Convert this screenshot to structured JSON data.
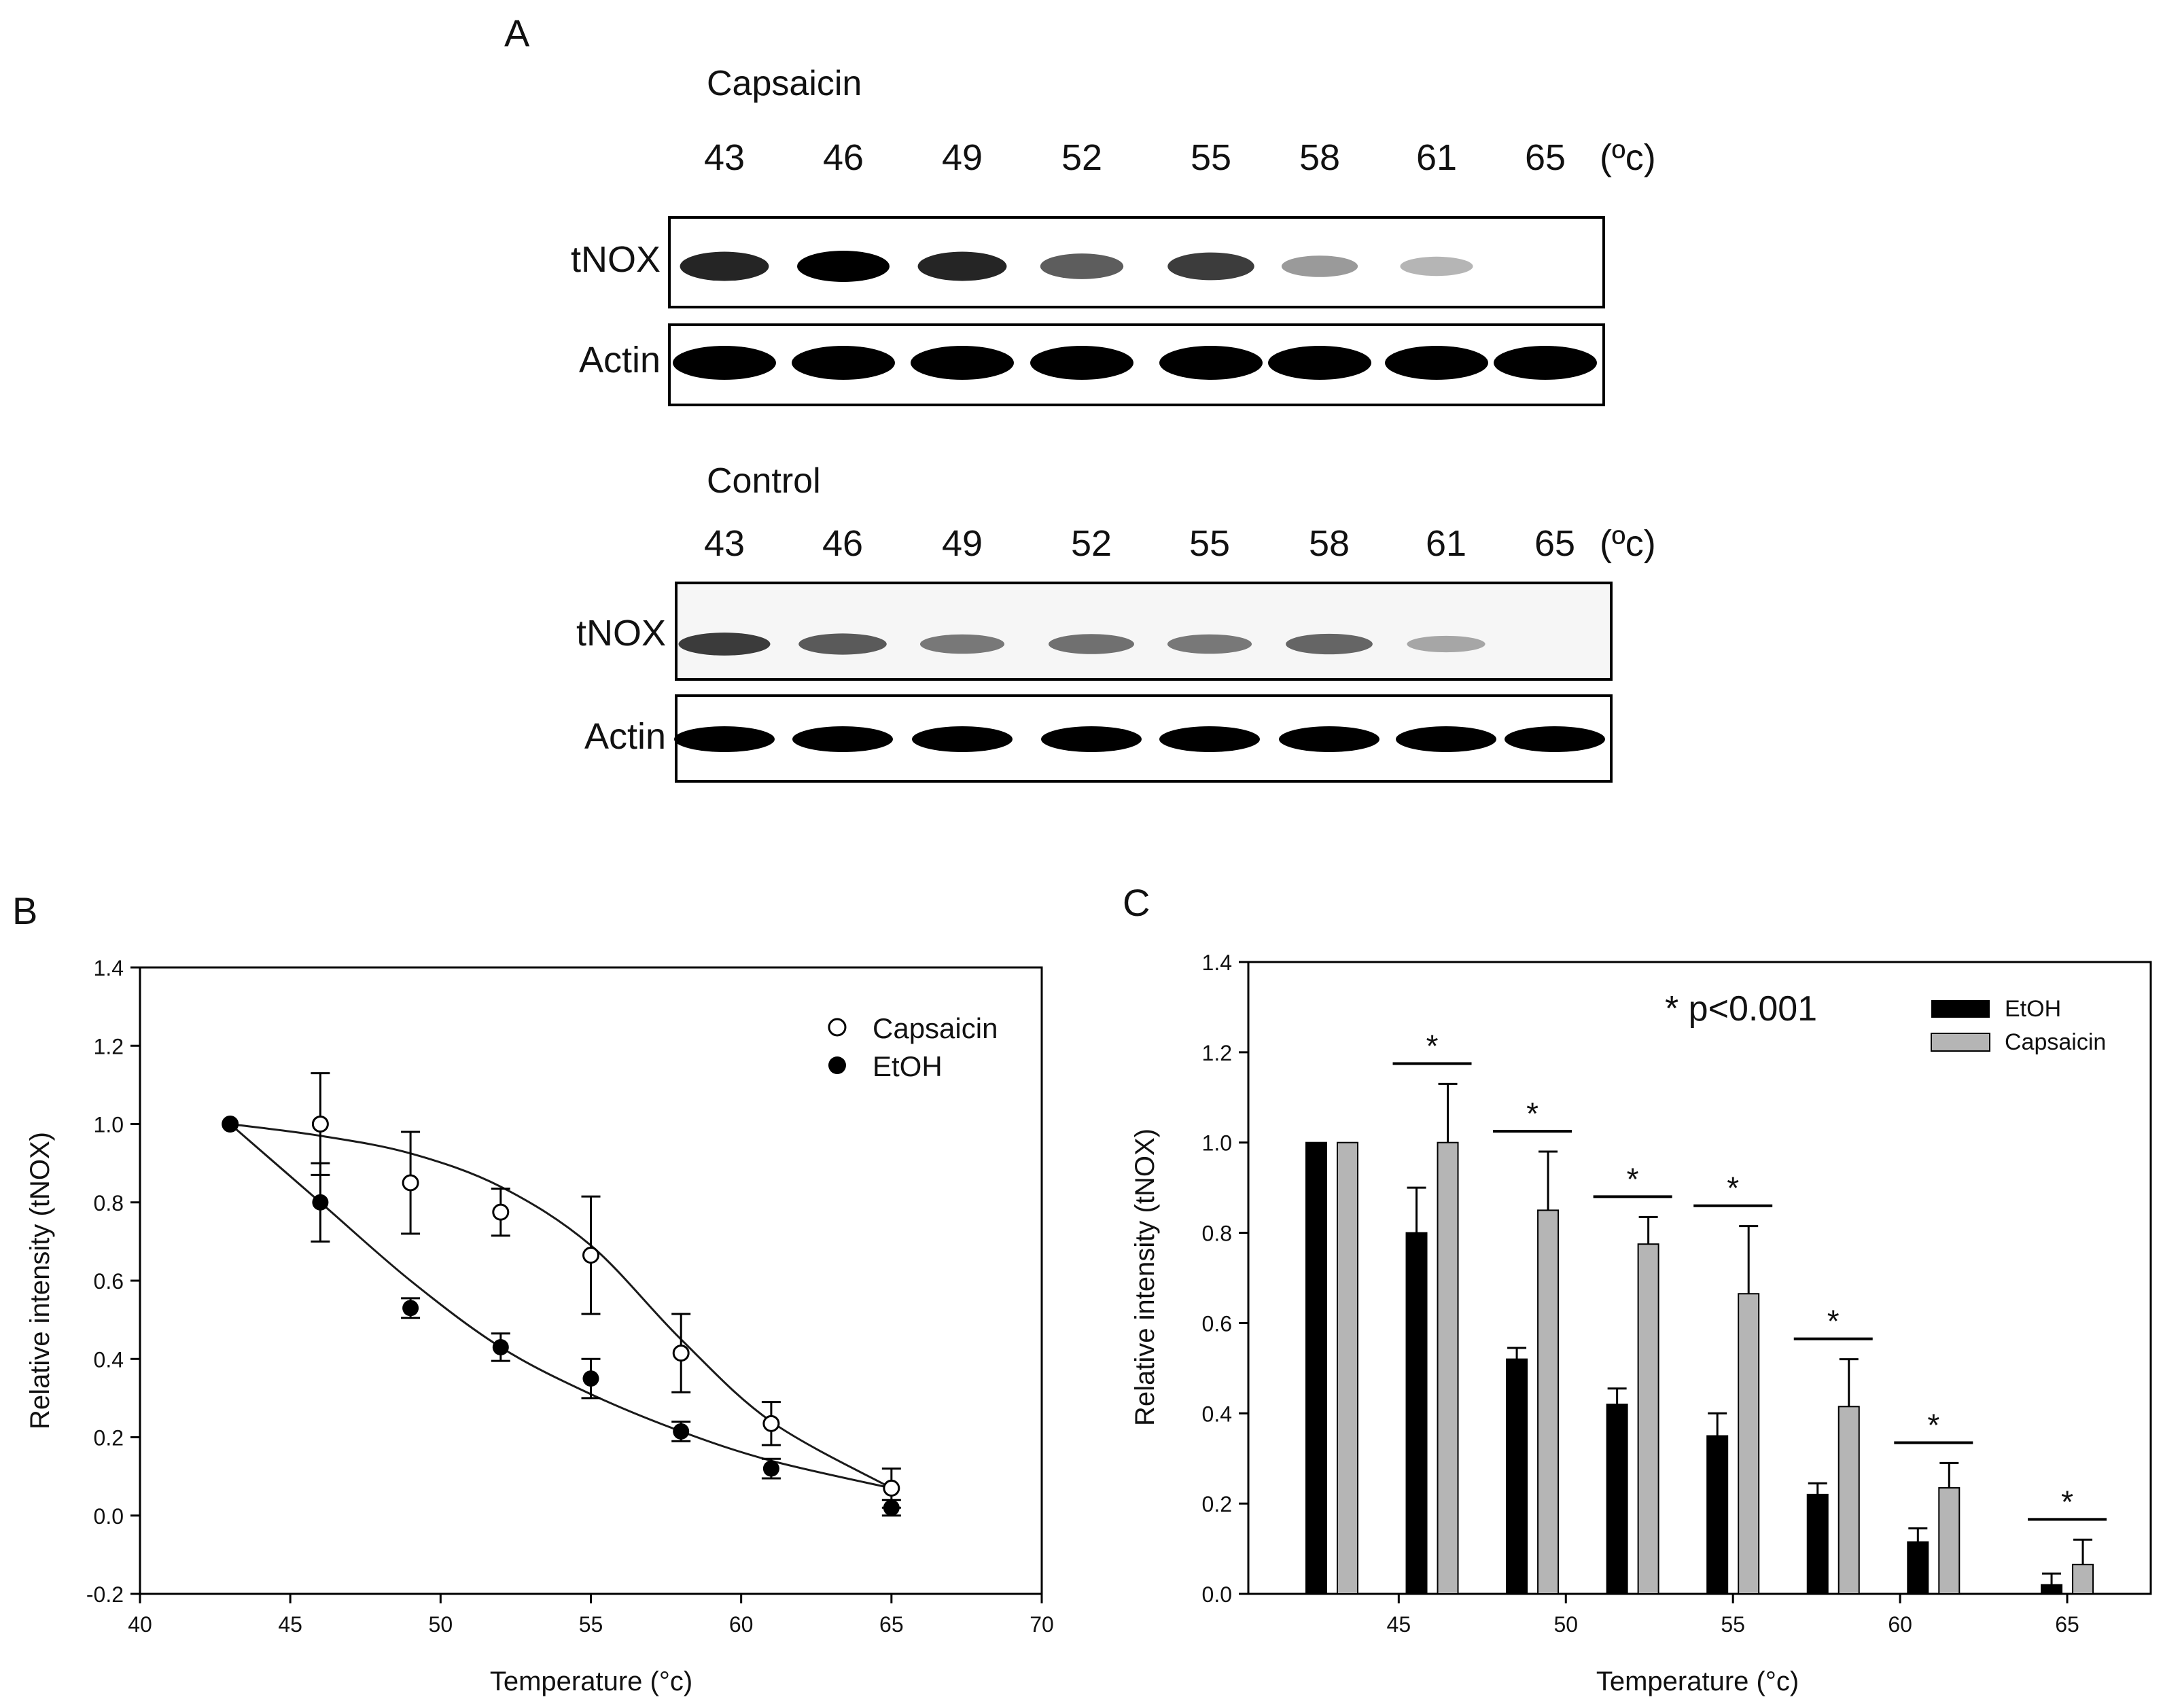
{
  "panel_a": {
    "letter": "A",
    "temp_unit": "(ºc)",
    "blots": [
      {
        "condition": "Capsaicin",
        "temperatures": [
          "43",
          "46",
          "49",
          "52",
          "55",
          "58",
          "61",
          "65"
        ],
        "rows": [
          {
            "label": "tNOX",
            "intensity": [
              0.85,
              1.0,
              0.85,
              0.6,
              0.75,
              0.3,
              0.15,
              0.0
            ]
          },
          {
            "label": "Actin",
            "intensity": [
              1.0,
              1.0,
              1.0,
              1.0,
              1.0,
              1.0,
              1.0,
              1.0
            ]
          }
        ]
      },
      {
        "condition": "Control",
        "temperatures": [
          "43",
          "46",
          "49",
          "52",
          "55",
          "58",
          "61",
          "65"
        ],
        "rows": [
          {
            "label": "tNOX",
            "intensity": [
              0.75,
              0.6,
              0.45,
              0.5,
              0.45,
              0.55,
              0.2,
              0.0
            ]
          },
          {
            "label": "Actin",
            "intensity": [
              1.0,
              1.0,
              1.0,
              1.0,
              1.0,
              1.0,
              1.0,
              1.0
            ]
          }
        ]
      }
    ]
  },
  "panel_b": {
    "letter": "B"
  },
  "panel_c": {
    "letter": "C",
    "significance_note": "* p<0.001"
  },
  "chart_data": [
    {
      "panel": "B",
      "type": "scatter",
      "xlabel": "Temperature (°c)",
      "ylabel": "Relative intensity (tNOX)",
      "xlim": [
        40,
        70
      ],
      "ylim": [
        -0.2,
        1.4
      ],
      "xticks": [
        "40",
        "45",
        "50",
        "55",
        "60",
        "65",
        "70"
      ],
      "yticks": [
        "-0.2",
        "0.0",
        "0.2",
        "0.4",
        "0.6",
        "0.8",
        "1.0",
        "1.2",
        "1.4"
      ],
      "legend_position": "top-right",
      "series": [
        {
          "name": "Capsaicin",
          "marker": "open-circle",
          "x": [
            43,
            46,
            49,
            52,
            55,
            58,
            61,
            65
          ],
          "y": [
            1.0,
            1.0,
            0.85,
            0.775,
            0.665,
            0.415,
            0.235,
            0.07
          ],
          "error": [
            0,
            0.13,
            0.13,
            0.06,
            0.15,
            0.1,
            0.055,
            0.05
          ],
          "fit_curve": [
            [
              43,
              1.0
            ],
            [
              46,
              0.97
            ],
            [
              49,
              0.925
            ],
            [
              52,
              0.84
            ],
            [
              55,
              0.69
            ],
            [
              58,
              0.45
            ],
            [
              61,
              0.24
            ],
            [
              65,
              0.07
            ]
          ]
        },
        {
          "name": "EtOH",
          "marker": "filled-circle",
          "x": [
            43,
            46,
            49,
            52,
            55,
            58,
            61,
            65
          ],
          "y": [
            1.0,
            0.8,
            0.53,
            0.43,
            0.35,
            0.215,
            0.12,
            0.02
          ],
          "error": [
            0,
            0.1,
            0.025,
            0.035,
            0.05,
            0.025,
            0.025,
            0.02
          ],
          "fit_curve": [
            [
              43,
              1.0
            ],
            [
              46,
              0.8
            ],
            [
              49,
              0.6
            ],
            [
              52,
              0.43
            ],
            [
              55,
              0.31
            ],
            [
              58,
              0.215
            ],
            [
              61,
              0.14
            ],
            [
              65,
              0.07
            ]
          ]
        }
      ]
    },
    {
      "panel": "C",
      "type": "bar",
      "xlabel": "Temperature (°c)",
      "ylabel": "Relative intensity (tNOX)",
      "ylim": [
        0.0,
        1.4
      ],
      "xlim": [
        40.5,
        67.5
      ],
      "yticks": [
        "0.0",
        "0.2",
        "0.4",
        "0.6",
        "0.8",
        "1.0",
        "1.2",
        "1.4"
      ],
      "xticks": [
        "45",
        "50",
        "55",
        "60",
        "65"
      ],
      "categories": [
        43,
        46,
        49,
        52,
        55,
        58,
        61,
        65
      ],
      "significance_marker": "*",
      "significant_categories": [
        46,
        49,
        52,
        55,
        58,
        61,
        65
      ],
      "legend_position": "top-right",
      "series": [
        {
          "name": "EtOH",
          "color": "#000000",
          "values": [
            1.0,
            0.8,
            0.52,
            0.42,
            0.35,
            0.22,
            0.115,
            0.02
          ],
          "error": [
            0,
            0.1,
            0.025,
            0.035,
            0.05,
            0.025,
            0.03,
            0.025
          ]
        },
        {
          "name": "Capsaicin",
          "color": "#b5b5b5",
          "values": [
            1.0,
            1.0,
            0.85,
            0.775,
            0.665,
            0.415,
            0.235,
            0.065
          ],
          "error": [
            0,
            0.13,
            0.13,
            0.06,
            0.15,
            0.105,
            0.055,
            0.055
          ]
        }
      ]
    }
  ]
}
